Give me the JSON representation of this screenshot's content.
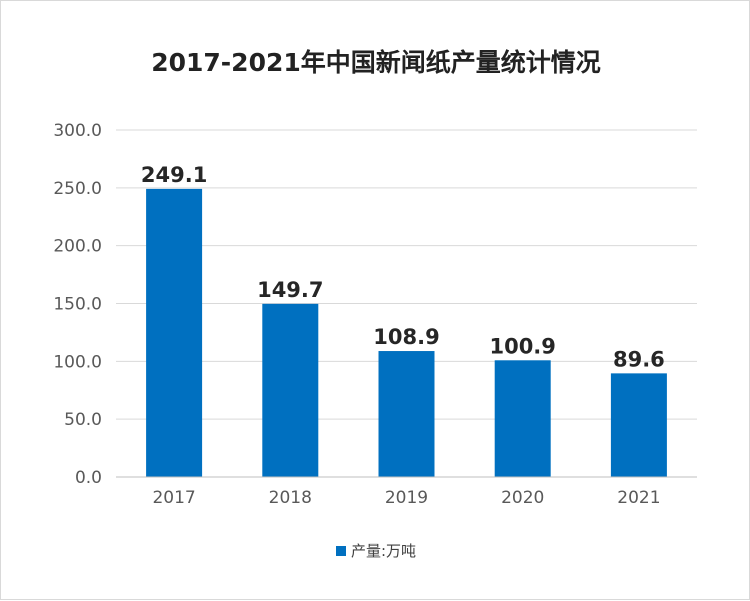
{
  "chart_data": {
    "type": "bar",
    "title": "2017-2021年中国新闻纸产量统计情况",
    "categories": [
      "2017",
      "2018",
      "2019",
      "2020",
      "2021"
    ],
    "series": [
      {
        "name": "产量:万吨",
        "values": [
          249.1,
          149.7,
          108.9,
          100.9,
          89.6
        ],
        "color": "#0070c0"
      }
    ],
    "data_labels": [
      "249.1",
      "149.7",
      "108.9",
      "100.9",
      "89.6"
    ],
    "yticks": [
      "0.0",
      "50.0",
      "100.0",
      "150.0",
      "200.0",
      "250.0",
      "300.0"
    ],
    "ylim": [
      0,
      300
    ],
    "grid": true,
    "legend_position": "bottom"
  }
}
